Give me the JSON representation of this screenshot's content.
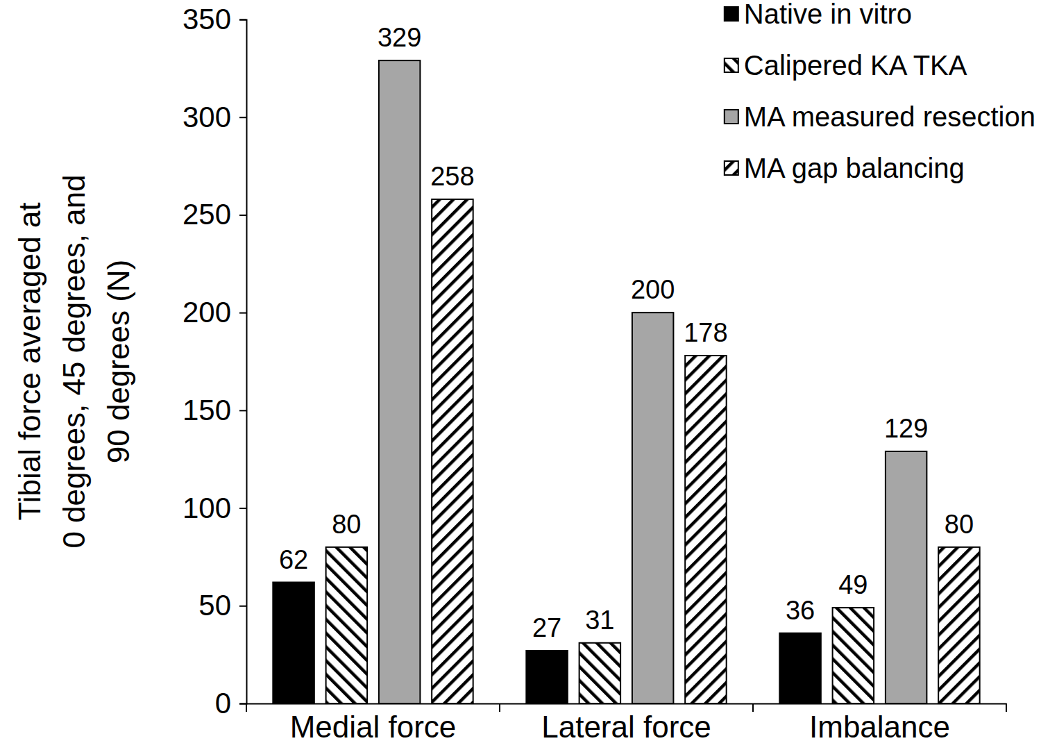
{
  "chart_data": {
    "type": "bar",
    "ylabel": [
      "Tibial force averaged at",
      "0 degrees, 45 degrees, and",
      "90 degrees (N)"
    ],
    "categories": [
      "Medial force",
      "Lateral force",
      "Imbalance"
    ],
    "series": [
      {
        "name": "Native in vitro",
        "color": "#000000",
        "values": [
          62,
          27,
          36
        ]
      },
      {
        "name": "Calipered KA TKA",
        "color": "#000000",
        "values": [
          80,
          31,
          49
        ]
      },
      {
        "name": "MA measured resection",
        "color": "#a6a6a6",
        "values": [
          329,
          200,
          129
        ]
      },
      {
        "name": "MA gap balancing",
        "color": "#000000",
        "values": [
          258,
          178,
          80
        ]
      }
    ],
    "ylim": [
      0,
      350
    ],
    "yticks": [
      0,
      50,
      100,
      150,
      200,
      250,
      300,
      350
    ],
    "grid": false,
    "legend": "top-right",
    "data_labels": true
  }
}
